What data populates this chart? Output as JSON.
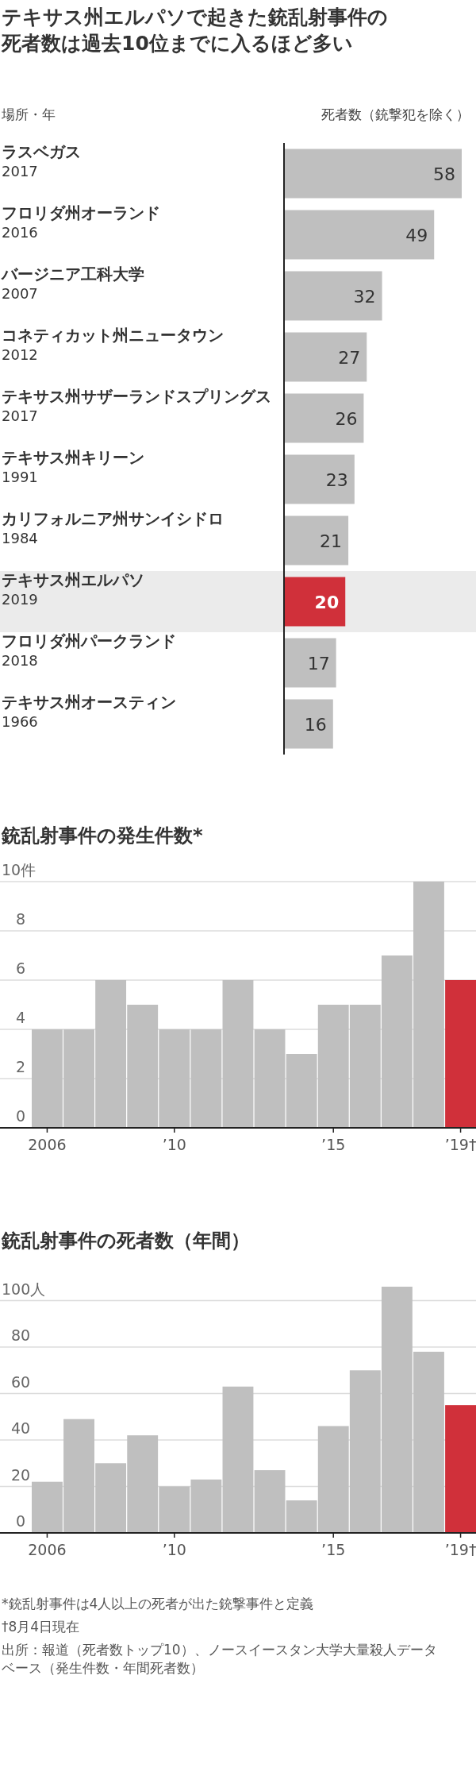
{
  "chart_data": [
    {
      "type": "bar",
      "orientation": "horizontal",
      "title": "テキサス州エルパソで起きた銃乱射事件の死者数は過去10位までに入るほど多い",
      "ylabel": "場所・年",
      "xlabel": "死者数（銃撃犯を除く）",
      "categories": [
        "ラスベガス\n2017",
        "フロリダ州オーランド\n2016",
        "バージニア工科大学\n2007",
        "コネティカット州ニュータウン\n2012",
        "テキサス州サザーランドスプリングス\n2017",
        "テキサス州キリーン\n1991",
        "カリフォルニア州サンイシドロ\n1984",
        "テキサス州エルパソ\n2019",
        "フロリダ州パークランド\n2018",
        "テキサス州オースティン\n1966"
      ],
      "values": [
        58,
        49,
        32,
        27,
        26,
        23,
        21,
        20,
        17,
        16
      ],
      "colors": [
        "#bfbfbf",
        "#bfbfbf",
        "#bfbfbf",
        "#bfbfbf",
        "#bfbfbf",
        "#bfbfbf",
        "#bfbfbf",
        "#d0303a",
        "#bfbfbf",
        "#bfbfbf"
      ],
      "data_labels": true,
      "tick_labels": "y"
    },
    {
      "type": "bar",
      "title": "銃乱射事件の発生件数*",
      "categories": [
        "2006",
        null,
        null,
        null,
        "’10",
        null,
        null,
        null,
        null,
        "’15",
        null,
        null,
        null,
        "’19†"
      ],
      "values": [
        4,
        4,
        6,
        5,
        4,
        4,
        6,
        4,
        3,
        5,
        5,
        7,
        10,
        6
      ],
      "colors": [
        "#bfbfbf",
        "#bfbfbf",
        "#bfbfbf",
        "#bfbfbf",
        "#bfbfbf",
        "#bfbfbf",
        "#bfbfbf",
        "#bfbfbf",
        "#bfbfbf",
        "#bfbfbf",
        "#bfbfbf",
        "#bfbfbf",
        "#bfbfbf",
        "#d0303a"
      ],
      "ylim": [
        0,
        10
      ],
      "yticks": [
        0,
        2,
        4,
        6,
        8,
        {
          "value": 10,
          "label": "10件"
        }
      ],
      "grid": "y"
    },
    {
      "type": "bar",
      "title": "銃乱射事件の死者数（年間）",
      "categories": [
        "2006",
        null,
        null,
        null,
        "’10",
        null,
        null,
        null,
        null,
        "’15",
        null,
        null,
        null,
        "’19†"
      ],
      "values": [
        22,
        49,
        30,
        42,
        20,
        23,
        63,
        27,
        14,
        46,
        70,
        106,
        78,
        55
      ],
      "colors": [
        "#bfbfbf",
        "#bfbfbf",
        "#bfbfbf",
        "#bfbfbf",
        "#bfbfbf",
        "#bfbfbf",
        "#bfbfbf",
        "#bfbfbf",
        "#bfbfbf",
        "#bfbfbf",
        "#bfbfbf",
        "#bfbfbf",
        "#bfbfbf",
        "#d0303a"
      ],
      "ylim": [
        0,
        106
      ],
      "yticks": [
        0,
        20,
        40,
        60,
        80,
        {
          "value": 100,
          "label": "100人"
        }
      ],
      "grid": "y",
      "annotations": [
        "*銃乱射事件は4人以上の死者が出た銃撃事件と定義",
        "†8月4日現在",
        "出所：報道（死者数トップ10）、ノースイースタン大学大量殺人データベース（発生件数・年間死者数）"
      ]
    }
  ]
}
